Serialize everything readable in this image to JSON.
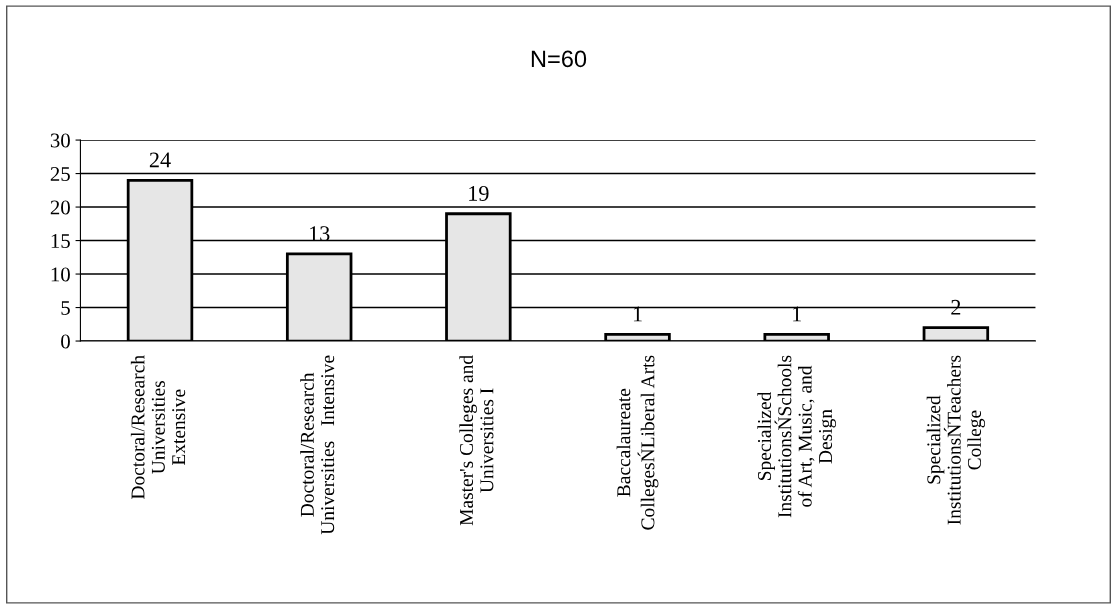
{
  "chart_data": {
    "type": "bar",
    "title": "N=60",
    "categories": [
      "Doctoral/Research\nUniversities\nExtensive",
      "Doctoral/Research\nUniversities   Intensive",
      "Master's Colleges and\nUniversities I",
      "Baccalaureate\nCollegesŃLiberal Arts",
      "Specialized\nInstitutionsŃSchools\nof Art, Music, and\nDesign",
      "Specialized\nInstitutionsŃTeachers\nCollege"
    ],
    "values": [
      24,
      13,
      19,
      1,
      1,
      2
    ],
    "color": "#e6e6e6",
    "ylim": [
      0,
      30
    ],
    "yticks": [
      0,
      5,
      10,
      15,
      20,
      25,
      30
    ],
    "grid": "y",
    "data_labels": true
  }
}
